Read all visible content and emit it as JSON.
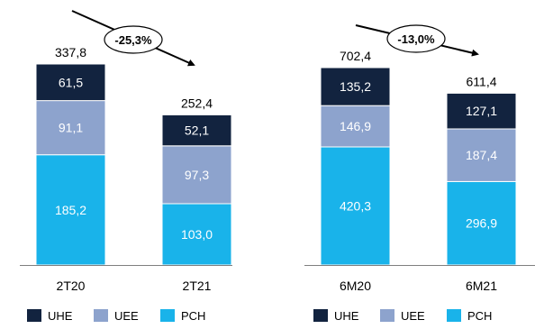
{
  "colors": {
    "UHE": "#12233f",
    "UEE": "#8da3cd",
    "PCH": "#19b3ea",
    "axis": "#7f7f7f",
    "arrow": "#000000"
  },
  "chart_data": [
    {
      "type": "bar",
      "stacked": true,
      "categories": [
        "2T20",
        "2T21"
      ],
      "series": [
        {
          "name": "PCH",
          "values": [
            185.2,
            103.0
          ],
          "labels": [
            "185,2",
            "103,0"
          ]
        },
        {
          "name": "UEE",
          "values": [
            91.1,
            97.3
          ],
          "labels": [
            "91,1",
            "97,3"
          ]
        },
        {
          "name": "UHE",
          "values": [
            61.5,
            52.1
          ],
          "labels": [
            "61,5",
            "52,1"
          ]
        }
      ],
      "totals": [
        337.8,
        252.4
      ],
      "total_labels": [
        "337,8",
        "252,4"
      ],
      "change_label": "-25,3%",
      "legend": [
        "UHE",
        "UEE",
        "PCH"
      ],
      "legend_position": "bottom",
      "ylim": [
        0,
        400
      ]
    },
    {
      "type": "bar",
      "stacked": true,
      "categories": [
        "6M20",
        "6M21"
      ],
      "series": [
        {
          "name": "PCH",
          "values": [
            420.3,
            296.9
          ],
          "labels": [
            "420,3",
            "296,9"
          ]
        },
        {
          "name": "UEE",
          "values": [
            146.9,
            187.4
          ],
          "labels": [
            "146,9",
            "187,4"
          ]
        },
        {
          "name": "UHE",
          "values": [
            135.2,
            127.1
          ],
          "labels": [
            "135,2",
            "127,1"
          ]
        }
      ],
      "totals": [
        702.4,
        611.4
      ],
      "total_labels": [
        "702,4",
        "611,4"
      ],
      "change_label": "-13,0%",
      "legend": [
        "UHE",
        "UEE",
        "PCH"
      ],
      "legend_position": "bottom",
      "ylim": [
        0,
        780
      ]
    }
  ]
}
